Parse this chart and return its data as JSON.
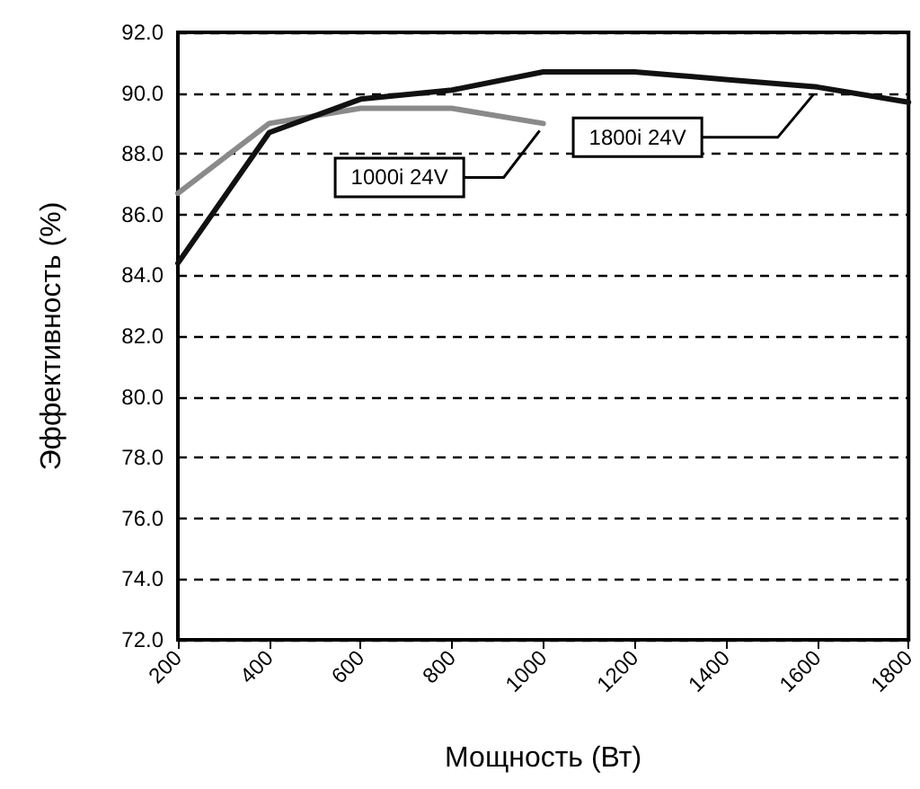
{
  "chart_data": {
    "type": "line",
    "xlabel": "Мощность (Вт)",
    "ylabel": "Эффективность (%)",
    "x": [
      200,
      400,
      600,
      800,
      1000,
      1200,
      1400,
      1600,
      1800
    ],
    "series": [
      {
        "name": "1000i 24V",
        "color": "#8a8a8a",
        "x": [
          200,
          400,
          600,
          800,
          1000
        ],
        "values": [
          86.7,
          89.0,
          89.5,
          89.5,
          89.0
        ]
      },
      {
        "name": "1800i 24V",
        "color": "#111111",
        "values": [
          84.4,
          88.7,
          89.8,
          90.1,
          90.7,
          90.7,
          90.45,
          90.2,
          89.7
        ]
      }
    ],
    "xlim": [
      200,
      1800
    ],
    "xticks": [
      200,
      400,
      600,
      800,
      1000,
      1200,
      1400,
      1600,
      1800
    ],
    "ylim": [
      72,
      92
    ],
    "yticks": [
      {
        "value": 72,
        "label": "72.0"
      },
      {
        "value": 74,
        "label": "74.0"
      },
      {
        "value": 76,
        "label": "76.0"
      },
      {
        "value": 78,
        "label": "78.0"
      },
      {
        "value": 80,
        "label": "80.0"
      },
      {
        "value": 82,
        "label": "82.0"
      },
      {
        "value": 84,
        "label": "84.0"
      },
      {
        "value": 86,
        "label": "86.0"
      },
      {
        "value": 88,
        "label": "88.0"
      },
      {
        "value": 90,
        "label": "90.0"
      },
      {
        "value": 92,
        "label": "92.0"
      }
    ],
    "grid": "y",
    "legend": false,
    "marker": "none",
    "line_style": "solid"
  }
}
